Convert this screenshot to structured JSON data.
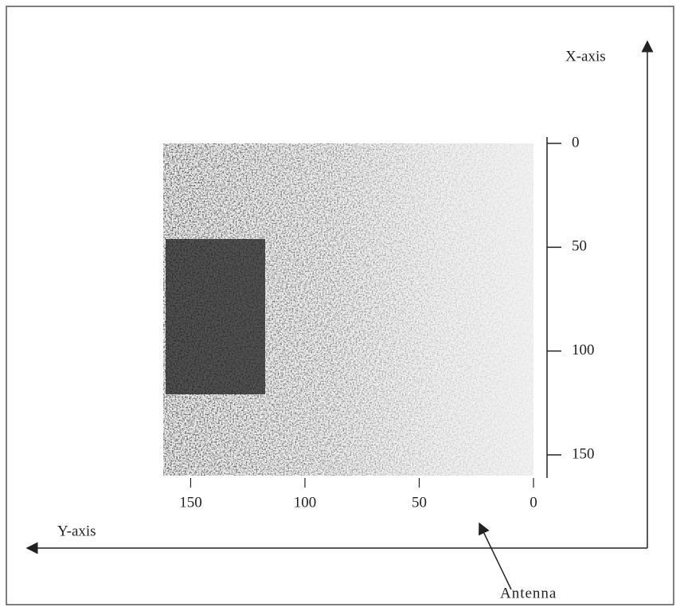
{
  "chart_data": {
    "type": "image",
    "xlabel": "Y-axis",
    "ylabel": "X-axis",
    "annotation": "Antenna",
    "xlim": [
      162,
      0
    ],
    "xticks": [
      150,
      100,
      50,
      0
    ],
    "ylim": [
      0,
      160
    ],
    "yticks": [
      0,
      50,
      100,
      150
    ]
  }
}
